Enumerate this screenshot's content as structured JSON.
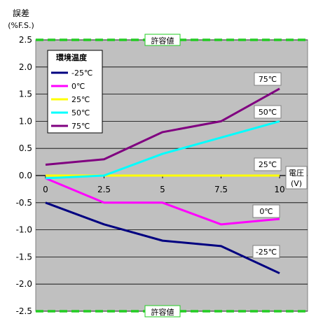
{
  "chart_data": {
    "type": "line",
    "ylabel": "誤差",
    "ylabel_unit": "(%F.S.)",
    "xlabel": "電圧",
    "xlabel_unit": "(V)",
    "x": [
      0,
      2.5,
      5,
      7.5,
      10
    ],
    "xticks": [
      "0",
      "2.5",
      "5",
      "7.5",
      "10"
    ],
    "ylim": [
      -2.5,
      2.5
    ],
    "yticks": [
      "2.5",
      "2.0",
      "1.5",
      "1.0",
      "0.5",
      "0.0",
      "-0.5",
      "-1.0",
      "-1.5",
      "-2.0",
      "-2.5"
    ],
    "grid": true,
    "legend_title": "環境温度",
    "legend_position": "top-left",
    "tolerance_label": "許容値",
    "tolerance": [
      2.5,
      -2.5
    ],
    "tolerance_color": "#22cc22",
    "plot_bg": "#c0c0c0",
    "series": [
      {
        "name": "-25℃",
        "end_label": "-25℃",
        "color": "#000080",
        "values": [
          -0.5,
          -0.9,
          -1.2,
          -1.3,
          -1.8
        ]
      },
      {
        "name": "0℃",
        "end_label": "0℃",
        "color": "#ff00ff",
        "values": [
          -0.05,
          -0.5,
          -0.5,
          -0.9,
          -0.8
        ]
      },
      {
        "name": "25℃",
        "end_label": "25℃",
        "color": "#ffff00",
        "values": [
          0,
          0,
          0,
          0,
          0
        ]
      },
      {
        "name": "50℃",
        "end_label": "50℃",
        "color": "#00ffff",
        "values": [
          -0.05,
          0,
          0.4,
          0.7,
          1.0
        ]
      },
      {
        "name": "75℃",
        "end_label": "75℃",
        "color": "#800080",
        "values": [
          0.2,
          0.3,
          0.8,
          1.0,
          1.6
        ]
      }
    ]
  }
}
